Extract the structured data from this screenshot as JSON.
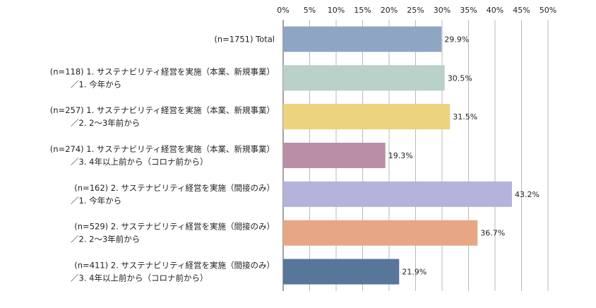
{
  "chart_data": {
    "type": "bar",
    "orientation": "horizontal",
    "title": "",
    "xlabel": "",
    "ylabel": "",
    "xlim": [
      0,
      50
    ],
    "x_ticks": [
      "0%",
      "5%",
      "10%",
      "15%",
      "20%",
      "25%",
      "30%",
      "35%",
      "40%",
      "45%",
      "50%"
    ],
    "grid": true,
    "categories": [
      [
        "(n=1751) Total"
      ],
      [
        "(n=118) 1. サステナビリティ経営を実施（本業、新規事業）",
        "／1. 今年から"
      ],
      [
        "(n=257) 1. サステナビリティ経営を実施（本業、新規事業）",
        "／2. 2～3年前から"
      ],
      [
        "(n=274) 1. サステナビリティ経営を実施（本業、新規事業）",
        "／3. 4年以上前から（コロナ前から）"
      ],
      [
        "(n=162) 2. サステナビリティ経営を実施（間接のみ）",
        "／1. 今年から"
      ],
      [
        "(n=529) 2. サステナビリティ経営を実施（間接のみ）",
        "／2. 2～3年前から"
      ],
      [
        "(n=411) 2. サステナビリティ経営を実施（間接のみ）",
        "／3. 4年以上前から（コロナ前から）"
      ]
    ],
    "values": [
      29.9,
      30.5,
      31.5,
      19.3,
      43.2,
      36.7,
      21.9
    ],
    "value_labels": [
      "29.9%",
      "30.5%",
      "31.5%",
      "19.3%",
      "43.2%",
      "36.7%",
      "21.9%"
    ],
    "colors": [
      "#8ea5c3",
      "#b9d1c8",
      "#ecd37f",
      "#bb8ea7",
      "#b3b3dc",
      "#e8a784",
      "#58769a"
    ]
  }
}
